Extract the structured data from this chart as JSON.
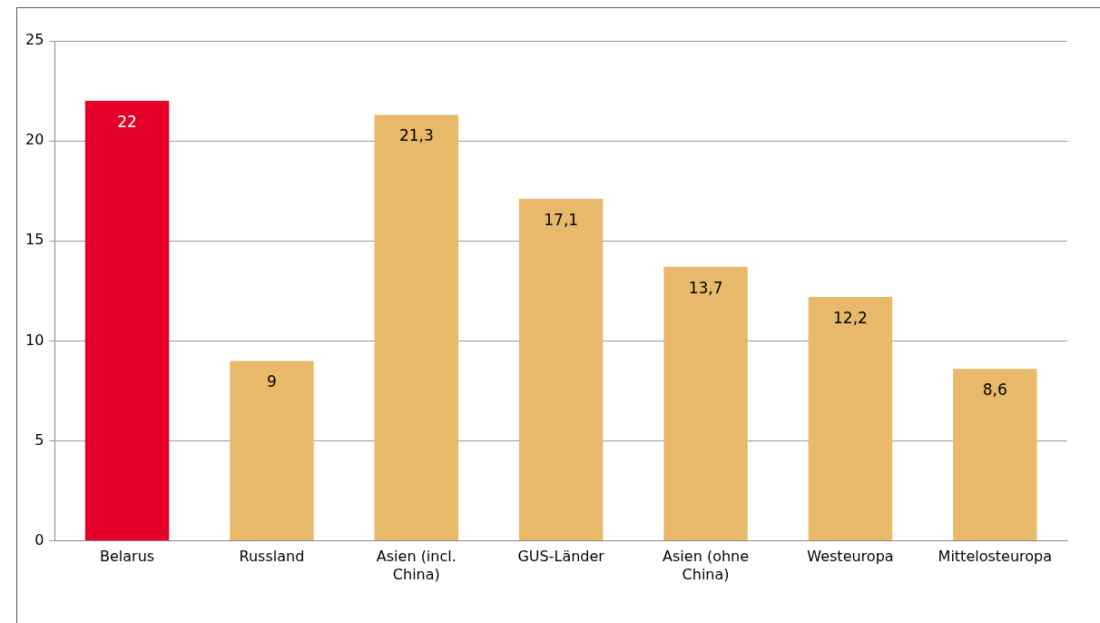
{
  "chart_data": {
    "type": "bar",
    "categories": [
      "Belarus",
      "Russland",
      "Asien (incl. China)",
      "GUS-Länder",
      "Asien (ohne China)",
      "Westeuropa",
      "Mittelosteuropa"
    ],
    "values": [
      22,
      9,
      21.3,
      17.1,
      13.7,
      12.2,
      8.6
    ],
    "colors": [
      "#e4002b",
      "#e8b96a",
      "#e8b96a",
      "#e8b96a",
      "#e8b96a",
      "#e8b96a",
      "#e8b96a"
    ],
    "ylim": [
      0,
      25
    ],
    "yticks": [
      0,
      5,
      10,
      15,
      20,
      25
    ],
    "value_labels": [
      "22",
      "9",
      "21,3",
      "17,1",
      "13,7",
      "12,2",
      "8,6"
    ],
    "grid": "y",
    "legend": false
  }
}
